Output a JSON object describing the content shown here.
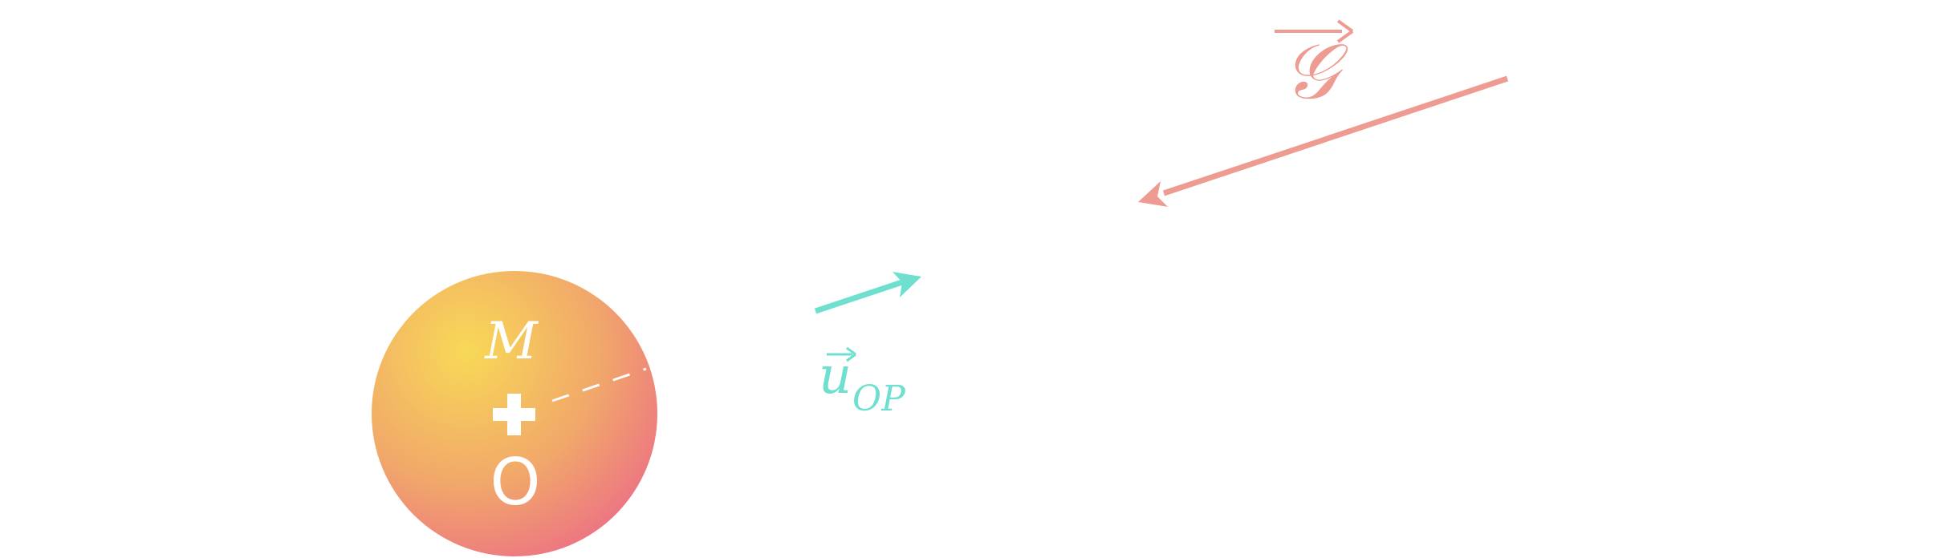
{
  "mass": {
    "label": "M",
    "center_label": "O"
  },
  "unit_vector": {
    "symbol": "u",
    "subscript": "OP",
    "color": "#6fe0cf"
  },
  "field_vector": {
    "symbol": "𝒢",
    "color": "#ee9b92"
  },
  "colors": {
    "sphere_inner": "#f8d957",
    "sphere_outer": "#ec6b87",
    "mark": "#ffffff"
  }
}
